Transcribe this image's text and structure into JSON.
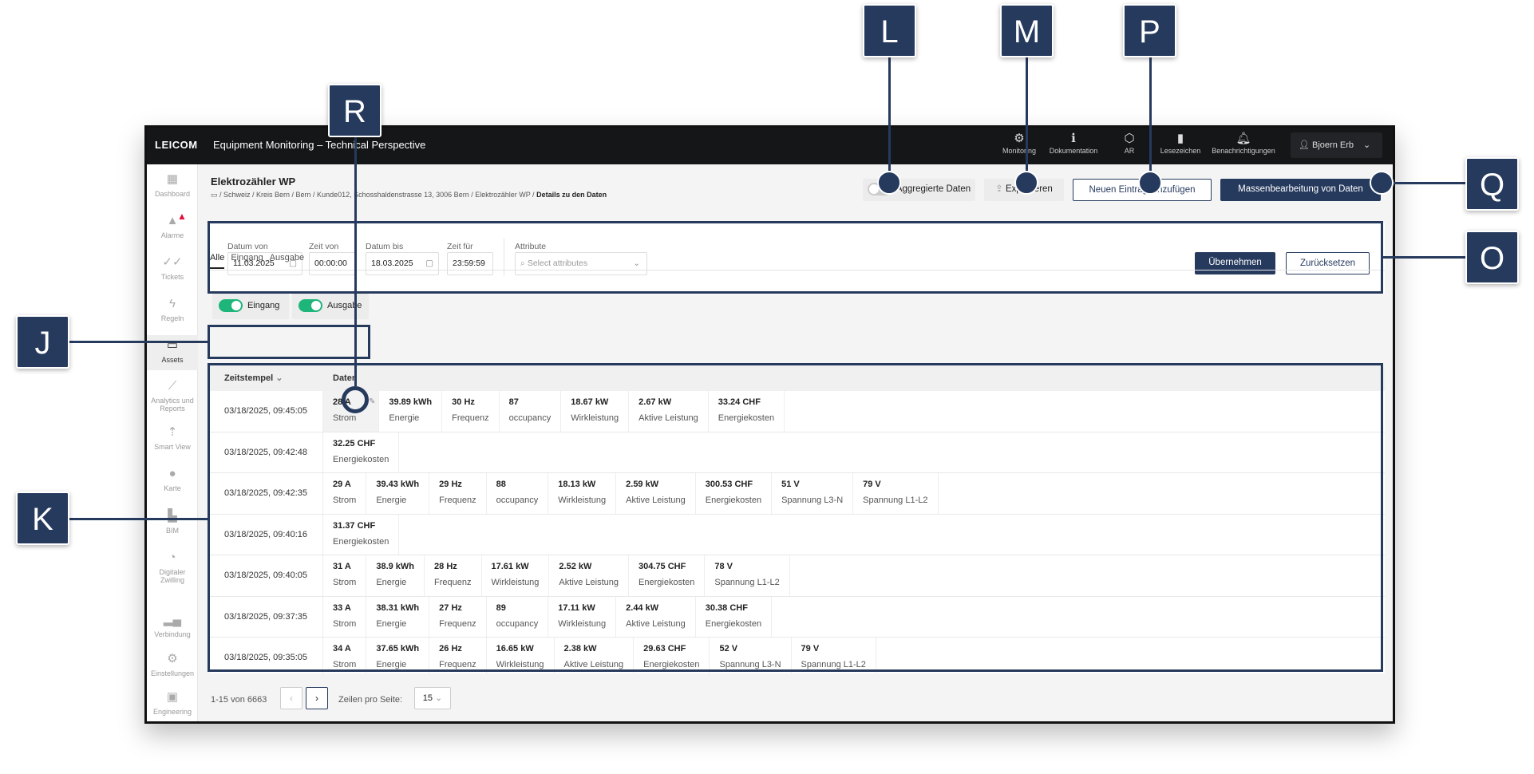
{
  "topbar": {
    "logo": "LEICOM",
    "title": "Equipment Monitoring – Technical Perspective",
    "nav": [
      {
        "label": "Monitoring",
        "icon": "grafana-icon"
      },
      {
        "label": "Dokumentation",
        "icon": "info-icon"
      },
      {
        "label": "AR",
        "icon": "ar-cube-icon"
      },
      {
        "label": "Lesezeichen",
        "icon": "bookmark-icon"
      },
      {
        "label": "Benachrichtigungen",
        "icon": "bell-icon"
      }
    ],
    "user": "Bjoern Erb"
  },
  "sidebar": {
    "items": [
      {
        "label": "Dashboard"
      },
      {
        "label": "Alarme"
      },
      {
        "label": "Tickets"
      },
      {
        "label": "Regeln"
      },
      {
        "label": "Assets"
      },
      {
        "label": "Analytics und Reports"
      },
      {
        "label": "Smart View"
      },
      {
        "label": "Karte"
      },
      {
        "label": "BIM"
      },
      {
        "label": "Digitaler Zwilling"
      },
      {
        "label": "Verbindung"
      },
      {
        "label": "Einstellungen"
      },
      {
        "label": "Engineering"
      }
    ],
    "active": "Assets"
  },
  "header": {
    "title": "Elektrozähler WP",
    "breadcrumb": "/ Schweiz / Kreis Bern / Bern / Kunde012, Schosshaldenstrasse 13, 3006 Bern / Elektrozähler WP /",
    "breadcrumb_current": "Details zu den Daten",
    "aggregated_label": "Aggregierte Daten",
    "aggregated_on": false,
    "export_label": "Exportieren",
    "add_label": "Neuen Eintrag hinzufügen",
    "bulk_label": "Massenbearbeitung von Daten"
  },
  "filter": {
    "date_from_label": "Datum von",
    "date_from": "11.03.2025",
    "time_from_label": "Zeit von",
    "time_from": "00:00:00",
    "date_to_label": "Datum bis",
    "date_to": "18.03.2025",
    "time_to_label": "Zeit für",
    "time_to": "23:59:59",
    "attr_label": "Attribute",
    "attr_placeholder": "Select attributes",
    "apply": "Übernehmen",
    "reset": "Zurücksetzen"
  },
  "tabs": [
    "Alle",
    "Eingang",
    "Ausgabe"
  ],
  "toggles": [
    {
      "label": "Eingang",
      "on": true
    },
    {
      "label": "Ausgabe",
      "on": true
    }
  ],
  "table": {
    "col_ts": "Zeitstempel",
    "col_data": "Daten",
    "rows": [
      {
        "ts": "03/18/2025, 09:45:05",
        "cells": [
          [
            "28 A",
            "Strom"
          ],
          [
            "39.89 kWh",
            "Energie"
          ],
          [
            "30 Hz",
            "Frequenz"
          ],
          [
            "87",
            "occupancy"
          ],
          [
            "18.67 kW",
            "Wirkleistung"
          ],
          [
            "2.67 kW",
            "Aktive Leistung"
          ],
          [
            "33.24 CHF",
            "Energiekosten"
          ]
        ]
      },
      {
        "ts": "03/18/2025, 09:42:48",
        "cells": [
          [
            "32.25 CHF",
            "Energiekosten"
          ]
        ]
      },
      {
        "ts": "03/18/2025, 09:42:35",
        "cells": [
          [
            "29 A",
            "Strom"
          ],
          [
            "39.43 kWh",
            "Energie"
          ],
          [
            "29 Hz",
            "Frequenz"
          ],
          [
            "88",
            "occupancy"
          ],
          [
            "18.13 kW",
            "Wirkleistung"
          ],
          [
            "2.59 kW",
            "Aktive Leistung"
          ],
          [
            "300.53 CHF",
            "Energiekosten"
          ],
          [
            "51 V",
            "Spannung L3-N"
          ],
          [
            "79 V",
            "Spannung L1-L2"
          ]
        ]
      },
      {
        "ts": "03/18/2025, 09:40:16",
        "cells": [
          [
            "31.37 CHF",
            "Energiekosten"
          ]
        ]
      },
      {
        "ts": "03/18/2025, 09:40:05",
        "cells": [
          [
            "31 A",
            "Strom"
          ],
          [
            "38.9 kWh",
            "Energie"
          ],
          [
            "28 Hz",
            "Frequenz"
          ],
          [
            "17.61 kW",
            "Wirkleistung"
          ],
          [
            "2.52 kW",
            "Aktive Leistung"
          ],
          [
            "304.75 CHF",
            "Energiekosten"
          ],
          [
            "78 V",
            "Spannung L1-L2"
          ]
        ]
      },
      {
        "ts": "03/18/2025, 09:37:35",
        "cells": [
          [
            "33 A",
            "Strom"
          ],
          [
            "38.31 kWh",
            "Energie"
          ],
          [
            "27 Hz",
            "Frequenz"
          ],
          [
            "89",
            "occupancy"
          ],
          [
            "17.11 kW",
            "Wirkleistung"
          ],
          [
            "2.44 kW",
            "Aktive Leistung"
          ],
          [
            "30.38 CHF",
            "Energiekosten"
          ]
        ]
      },
      {
        "ts": "03/18/2025, 09:35:05",
        "cells": [
          [
            "34 A",
            "Strom"
          ],
          [
            "37.65 kWh",
            "Energie"
          ],
          [
            "26 Hz",
            "Frequenz"
          ],
          [
            "16.65 kW",
            "Wirkleistung"
          ],
          [
            "2.38 kW",
            "Aktive Leistung"
          ],
          [
            "29.63 CHF",
            "Energiekosten"
          ],
          [
            "52 V",
            "Spannung L3-N"
          ],
          [
            "79 V",
            "Spannung L1-L2"
          ]
        ]
      }
    ]
  },
  "pagination": {
    "range": "1-15 von 6663",
    "rows_label": "Zeilen pro Seite:",
    "rows_value": "15"
  },
  "callouts": {
    "L": "L",
    "M": "M",
    "P": "P",
    "Q": "Q",
    "O": "O",
    "R": "R",
    "J": "J",
    "K": "K"
  },
  "colors": {
    "annotation": "#263a5e",
    "toggle_on": "#1db57a",
    "primary": "#263a5e",
    "alert": "#e0103a"
  }
}
